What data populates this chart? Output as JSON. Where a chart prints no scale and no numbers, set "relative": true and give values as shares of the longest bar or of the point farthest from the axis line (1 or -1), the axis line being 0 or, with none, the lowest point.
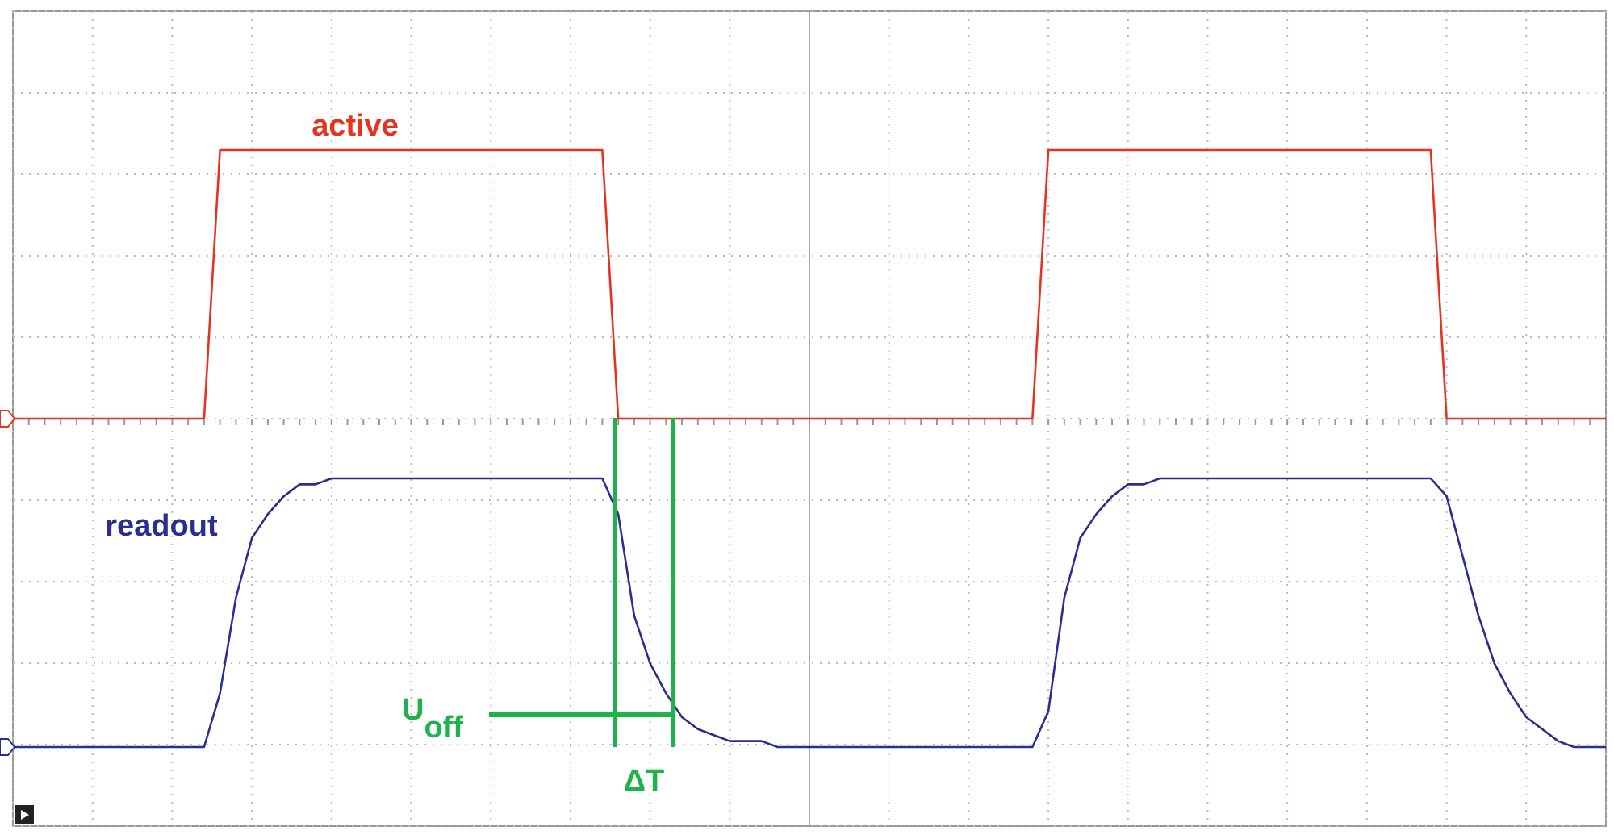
{
  "chart_data": {
    "type": "line",
    "relative": true,
    "grid": true,
    "marker": "none",
    "line_style": "solid",
    "categories": [
      null,
      null,
      null,
      null,
      null,
      null,
      null,
      null,
      null,
      null,
      null,
      null,
      null,
      null,
      null,
      null,
      null,
      null,
      null,
      null,
      null,
      null,
      null,
      null,
      null,
      null,
      null,
      null,
      null,
      null,
      null,
      null,
      null,
      null,
      null,
      null,
      null,
      null,
      null,
      null,
      null,
      null,
      null,
      null,
      null,
      null,
      null,
      null,
      null,
      null,
      null,
      null,
      null,
      null,
      null,
      null,
      null,
      null,
      null,
      null,
      null,
      null,
      null,
      null,
      null,
      null,
      null,
      null,
      null,
      null,
      null,
      null,
      null,
      null,
      null,
      null,
      null,
      null,
      null,
      null,
      null,
      null,
      null,
      null,
      null,
      null,
      null,
      null,
      null,
      null,
      null,
      null,
      null,
      null,
      null,
      null,
      null,
      null,
      null,
      null,
      null
    ],
    "series": [
      {
        "color": "#e8321e",
        "values": [
          0.55,
          0.55,
          0.55,
          0.55,
          0.55,
          0.55,
          0.55,
          0.55,
          0.55,
          0.55,
          0.55,
          0.55,
          0.55,
          1,
          1,
          1,
          1,
          1,
          1,
          1,
          1,
          1,
          1,
          1,
          1,
          1,
          1,
          1,
          1,
          1,
          1,
          1,
          1,
          1,
          1,
          1,
          1,
          1,
          0.55,
          0.55,
          0.55,
          0.55,
          0.55,
          0.55,
          0.55,
          0.55,
          0.55,
          0.55,
          0.55,
          0.55,
          0.55,
          0.55,
          0.55,
          0.55,
          0.55,
          0.55,
          0.55,
          0.55,
          0.55,
          0.55,
          0.55,
          0.55,
          0.55,
          0.55,
          0.55,
          1,
          1,
          1,
          1,
          1,
          1,
          1,
          1,
          1,
          1,
          1,
          1,
          1,
          1,
          1,
          1,
          1,
          1,
          1,
          1,
          1,
          1,
          1,
          1,
          1,
          0.55,
          0.55,
          0.55,
          0.55,
          0.55,
          0.55,
          0.55,
          0.55,
          0.55,
          0.55,
          0.55
        ]
      },
      {
        "color": "#2a2f8f",
        "values": [
          0,
          0,
          0,
          0,
          0,
          0,
          0,
          0,
          0,
          0,
          0,
          0,
          0,
          0.09,
          0.25,
          0.35,
          0.39,
          0.42,
          0.44,
          0.44,
          0.45,
          0.45,
          0.45,
          0.45,
          0.45,
          0.45,
          0.45,
          0.45,
          0.45,
          0.45,
          0.45,
          0.45,
          0.45,
          0.45,
          0.45,
          0.45,
          0.45,
          0.45,
          0.39,
          0.22,
          0.14,
          0.09,
          0.05,
          0.03,
          0.02,
          0.01,
          0.01,
          0.01,
          0,
          0,
          0,
          0,
          0,
          0,
          0,
          0,
          0,
          0,
          0,
          0,
          0,
          0,
          0,
          0,
          0,
          0.06,
          0.25,
          0.35,
          0.39,
          0.42,
          0.44,
          0.44,
          0.45,
          0.45,
          0.45,
          0.45,
          0.45,
          0.45,
          0.45,
          0.45,
          0.45,
          0.45,
          0.45,
          0.45,
          0.45,
          0.45,
          0.45,
          0.45,
          0.45,
          0.45,
          0.42,
          0.32,
          0.22,
          0.14,
          0.09,
          0.05,
          0.03,
          0.01,
          0,
          0,
          0
        ]
      }
    ],
    "annotations": [
      "active",
      "readout",
      "U$_{off}$",
      "ΔT"
    ]
  }
}
